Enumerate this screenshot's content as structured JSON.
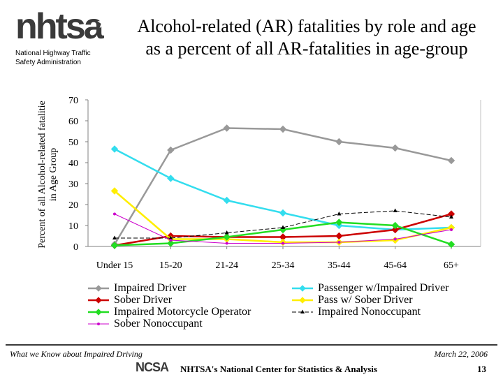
{
  "logo": {
    "word": "nhtsa",
    "agency_line1": "National Highway Traffic",
    "agency_line2": "Safety Administration"
  },
  "slide": {
    "title_line1": "Alcohol-related (AR) fatalities by role and age",
    "title_line2": "as a percent of all AR-fatalities in age-group"
  },
  "footer": {
    "left": "What we Know about Impaired Driving",
    "right": "March 22, 2006",
    "ncsa_logo": "NCSA",
    "center": "NHTSA's National Center for Statistics & Analysis",
    "page": "13"
  },
  "chart_data": {
    "type": "line",
    "ylabel_line1": "Percent of all Alcohol-related fatalitie",
    "ylabel_line2": "in Age Group",
    "xlabel": "",
    "ylim": [
      0,
      70
    ],
    "yticks": [
      0,
      10,
      20,
      30,
      40,
      50,
      60,
      70
    ],
    "grid": false,
    "legend_position": "bottom",
    "categories": [
      "Under 15",
      "15-20",
      "21-24",
      "25-34",
      "35-44",
      "45-64",
      "65+"
    ],
    "series": [
      {
        "name": "Impaired Driver",
        "color": "#999999",
        "marker": "diamond",
        "dashed": false,
        "values": [
          1,
          46,
          56.5,
          56,
          50,
          47,
          41
        ]
      },
      {
        "name": "Passenger w/Impaired Driver",
        "color": "#33ddee",
        "marker": "diamond",
        "dashed": false,
        "values": [
          46.5,
          32.5,
          22,
          16,
          10,
          8,
          9
        ]
      },
      {
        "name": "Sober Driver",
        "color": "#cc0000",
        "marker": "diamond",
        "dashed": false,
        "values": [
          0.5,
          5,
          4.5,
          4.5,
          5,
          8,
          15.5
        ]
      },
      {
        "name": "Pass w/ Sober Driver",
        "color": "#ffee00",
        "marker": "diamond",
        "dashed": false,
        "values": [
          26.5,
          3.5,
          3.5,
          2,
          2,
          3,
          9
        ]
      },
      {
        "name": "Impaired Motorcycle Operator",
        "color": "#22dd22",
        "marker": "diamond",
        "dashed": false,
        "values": [
          0.5,
          1.5,
          4.5,
          8,
          11.5,
          10,
          1
        ]
      },
      {
        "name": "Impaired Nonoccupant",
        "color": "#000000",
        "marker": "triangle",
        "dashed": true,
        "values": [
          4,
          4,
          6.5,
          9,
          15.5,
          17,
          14
        ]
      },
      {
        "name": "Sober Nonoccupant",
        "color": "#cc00cc",
        "marker": "circle",
        "dashed": false,
        "values": [
          15.5,
          3,
          1.5,
          1.5,
          2,
          3.5,
          8
        ]
      }
    ]
  }
}
